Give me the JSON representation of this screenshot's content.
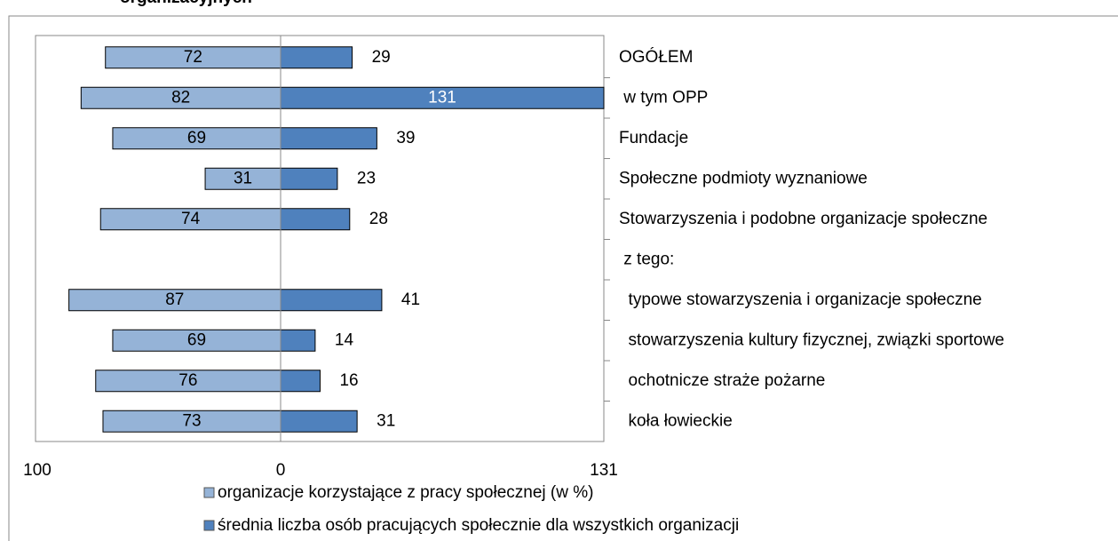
{
  "chart_data": {
    "type": "diverging-bar",
    "title": "organizacyjnych",
    "categories": [
      "OGÓŁEM",
      " w tym OPP",
      "Fundacje",
      "Społeczne podmioty wyznaniowe",
      "Stowarzyszenia i podobne organizacje społeczne",
      " z tego:",
      "  typowe stowarzyszenia i organizacje społeczne",
      "  stowarzyszenia kultury fizycznej, związki sportowe",
      "  ochotnicze straże pożarne",
      "  koła łowieckie"
    ],
    "series": [
      {
        "name": "organizacje korzystające z pracy społecznej (w %)",
        "color": "#95b3d7",
        "values": [
          72,
          82,
          69,
          31,
          74,
          null,
          87,
          69,
          76,
          73
        ]
      },
      {
        "name": "średnia liczba osób pracujących społecznie dla wszystkich organizacji",
        "color": "#4f81bd",
        "axis": "x2",
        "values": [
          29,
          131,
          39,
          23,
          28,
          null,
          41,
          14,
          16,
          31
        ]
      }
    ],
    "xlim": [
      0,
      100
    ],
    "xticks": [
      100,
      0
    ],
    "x2lim": [
      0,
      131
    ],
    "x2ticks": [
      131
    ]
  }
}
